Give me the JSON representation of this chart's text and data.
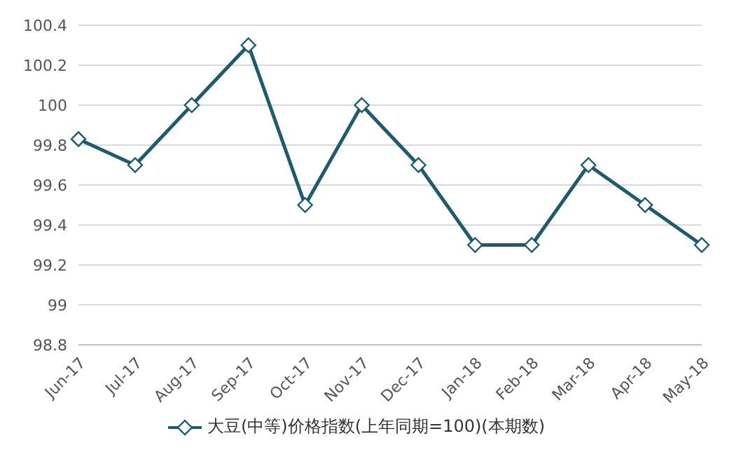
{
  "chart_data": {
    "type": "line",
    "categories": [
      "Jun-17",
      "Jul-17",
      "Aug-17",
      "Sep-17",
      "Oct-17",
      "Nov-17",
      "Dec-17",
      "Jan-18",
      "Feb-18",
      "Mar-18",
      "Apr-18",
      "May-18"
    ],
    "series": [
      {
        "name": "大豆(中等)价格指数(上年同期=100)(本期数)",
        "color": "#1f5a6e",
        "values": [
          99.83,
          99.7,
          100,
          100.3,
          99.5,
          100,
          99.7,
          99.3,
          99.3,
          99.7,
          99.5,
          99.3
        ]
      }
    ],
    "ylim": [
      98.8,
      100.4
    ],
    "yticks": [
      98.8,
      99,
      99.2,
      99.4,
      99.6,
      99.8,
      100,
      100.2,
      100.4
    ],
    "grid": "y",
    "legend": "bottom",
    "marker": "diamond"
  }
}
